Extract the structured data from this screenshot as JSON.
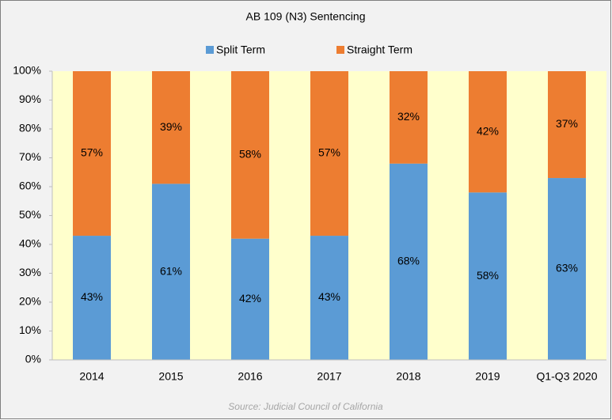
{
  "chart_data": {
    "type": "stacked_bar",
    "title": "AB 109 (N3) Sentencing",
    "source": "Source: Judicial Council of California",
    "categories": [
      "2014",
      "2015",
      "2016",
      "2017",
      "2018",
      "2019",
      "Q1-Q3 2020"
    ],
    "series": [
      {
        "name": "Split Term",
        "color": "#5b9bd5",
        "values": [
          43,
          61,
          42,
          43,
          68,
          58,
          63
        ],
        "value_labels": [
          "43%",
          "61%",
          "42%",
          "43%",
          "68%",
          "58%",
          "63%"
        ]
      },
      {
        "name": "Straight Term",
        "color": "#ed7d31",
        "values": [
          57,
          39,
          58,
          57,
          32,
          42,
          37
        ],
        "value_labels": [
          "57%",
          "39%",
          "58%",
          "57%",
          "32%",
          "42%",
          "37%"
        ]
      }
    ],
    "ylim": [
      0,
      100
    ],
    "yticks": [
      {
        "value": 0,
        "label": "0%"
      },
      {
        "value": 10,
        "label": "10%"
      },
      {
        "value": 20,
        "label": "20%"
      },
      {
        "value": 30,
        "label": "30%"
      },
      {
        "value": 40,
        "label": "40%"
      },
      {
        "value": 50,
        "label": "50%"
      },
      {
        "value": 60,
        "label": "60%"
      },
      {
        "value": 70,
        "label": "70%"
      },
      {
        "value": 80,
        "label": "80%"
      },
      {
        "value": 90,
        "label": "90%"
      },
      {
        "value": 100,
        "label": "100%"
      }
    ],
    "plot_background": "#ffffcc",
    "legend": "top"
  }
}
